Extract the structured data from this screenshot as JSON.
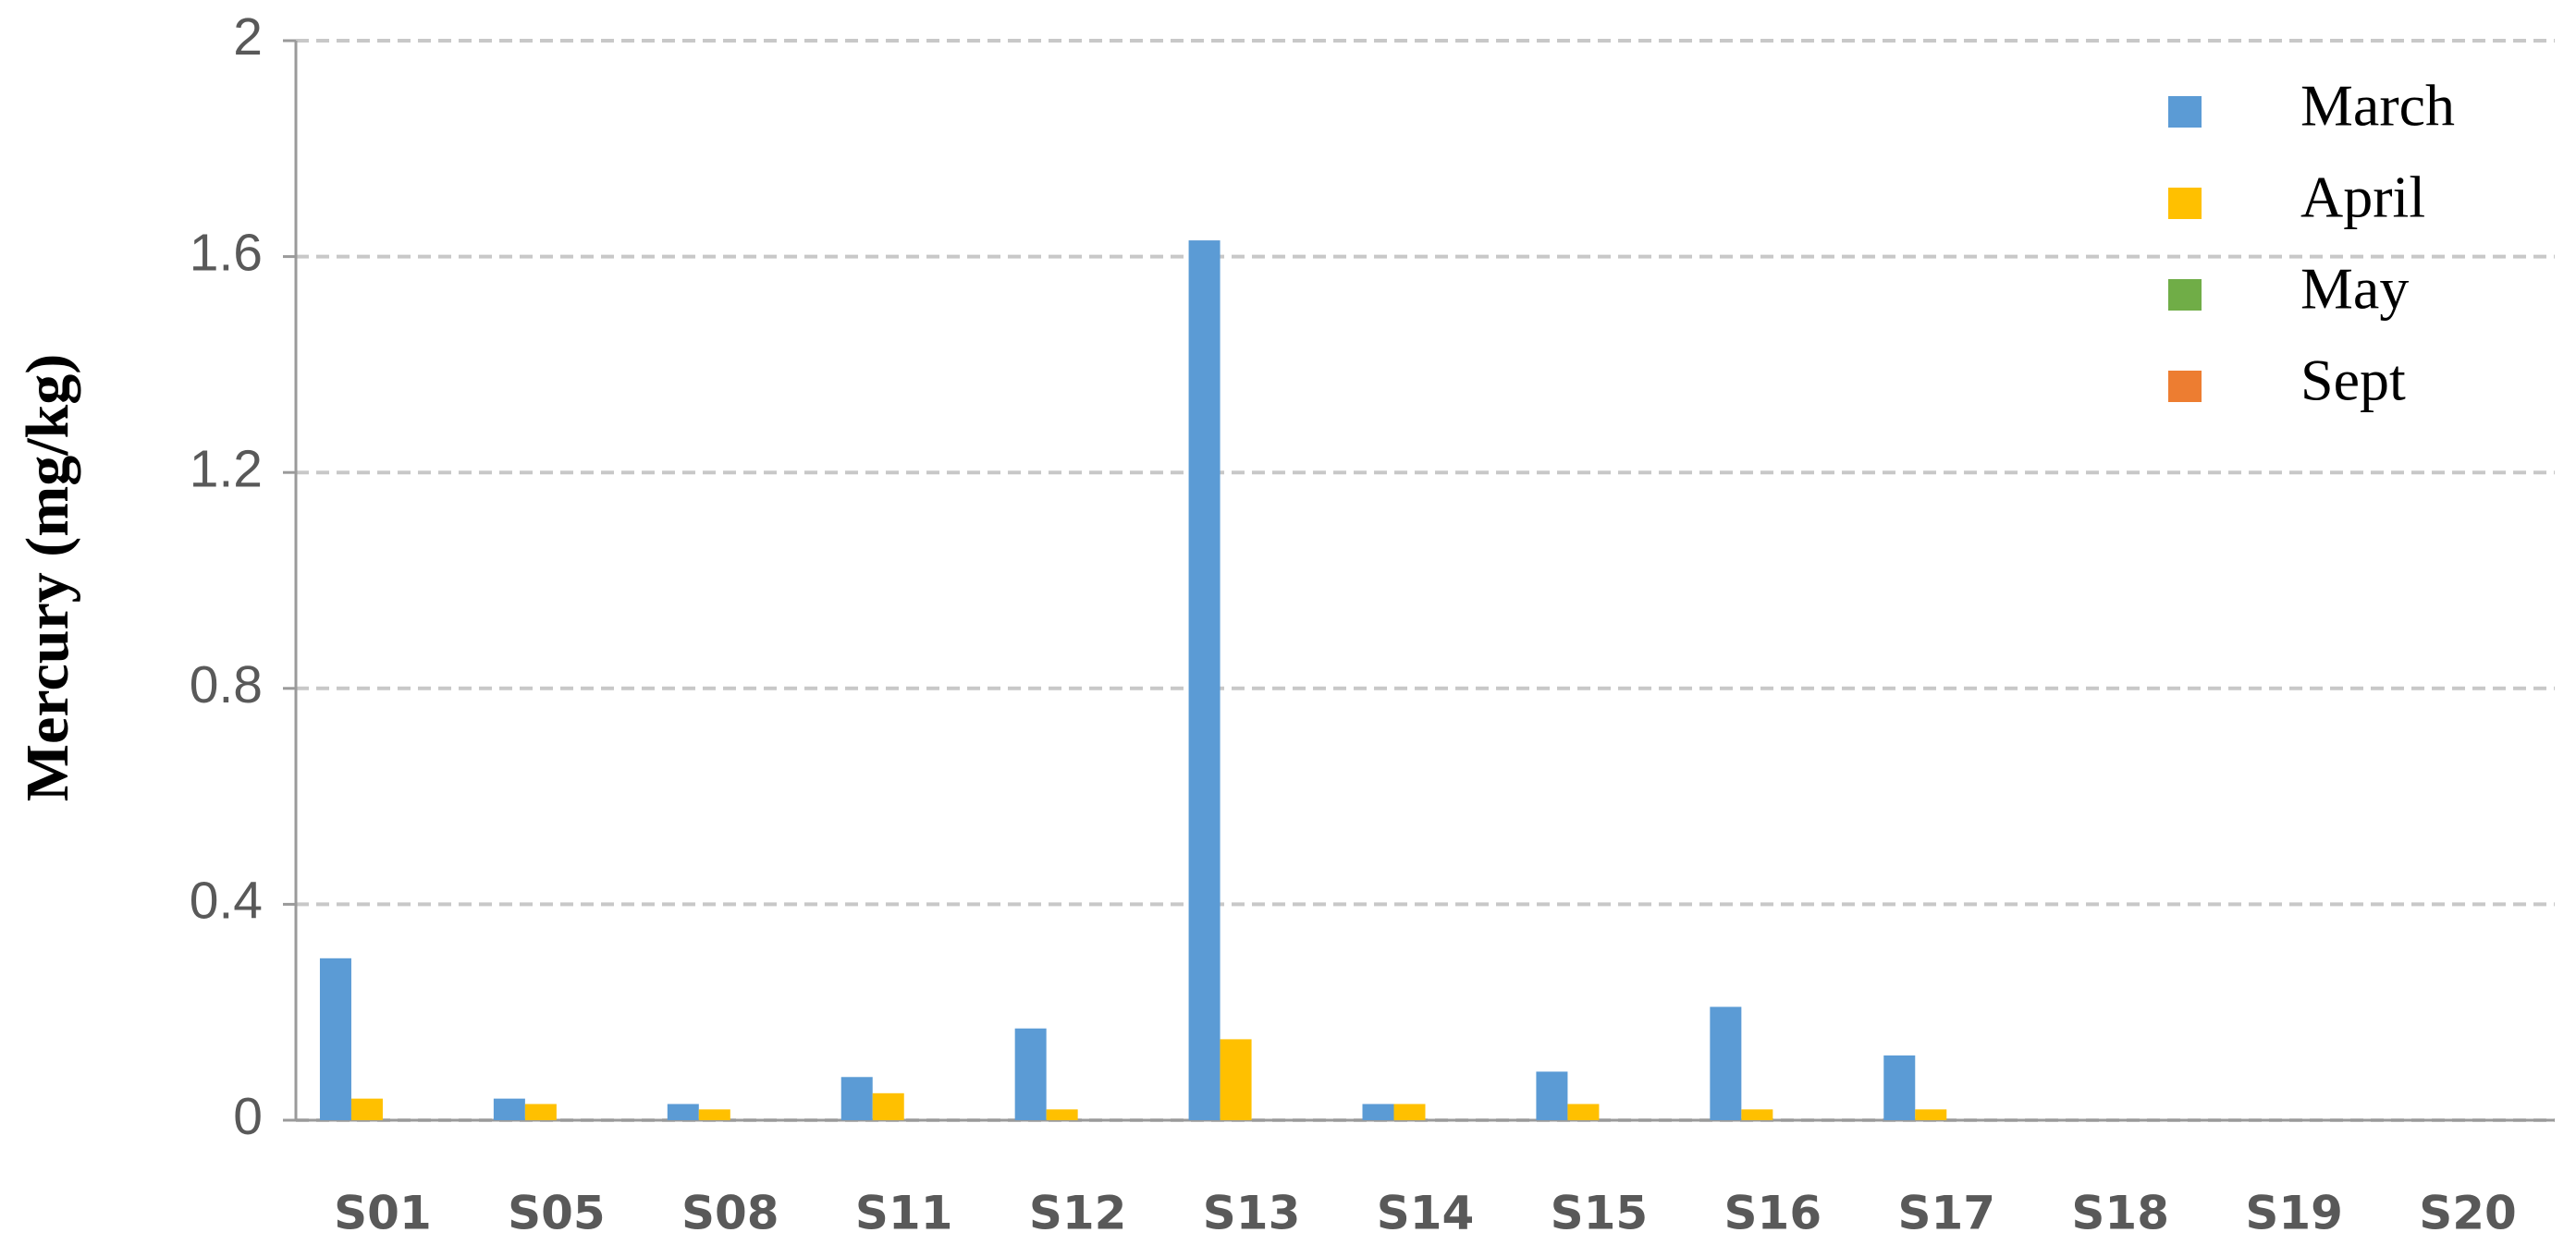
{
  "chart_data": {
    "type": "bar",
    "y_label": "Mercury (mg/kg)",
    "categories": [
      "S01",
      "S05",
      "S08",
      "S11",
      "S12",
      "S13",
      "S14",
      "S15",
      "S16",
      "S17",
      "S18",
      "S19",
      "S20"
    ],
    "series": [
      {
        "name": "March",
        "color": "#5b9bd5",
        "values": [
          0.3,
          0.04,
          0.03,
          0.08,
          0.17,
          1.63,
          0.03,
          0.09,
          0.21,
          0.12,
          0,
          0,
          0
        ]
      },
      {
        "name": "April",
        "color": "#ffc000",
        "values": [
          0.04,
          0.03,
          0.02,
          0.05,
          0.02,
          0.15,
          0.03,
          0.03,
          0.02,
          0.02,
          0,
          0,
          0
        ]
      },
      {
        "name": "May",
        "color": "#70ad47",
        "values": [
          0,
          0,
          0,
          0,
          0,
          0,
          0,
          0,
          0,
          0,
          0,
          0,
          0
        ]
      },
      {
        "name": "Sept",
        "color": "#ed7d31",
        "values": [
          0,
          0,
          0,
          0,
          0,
          0,
          0,
          0,
          0,
          0,
          0,
          0,
          0
        ]
      }
    ],
    "ylim": [
      0,
      2
    ],
    "yticks": [
      0,
      0.4,
      0.8,
      1.2,
      1.6,
      2
    ],
    "grid": true,
    "legend": "top-right"
  }
}
